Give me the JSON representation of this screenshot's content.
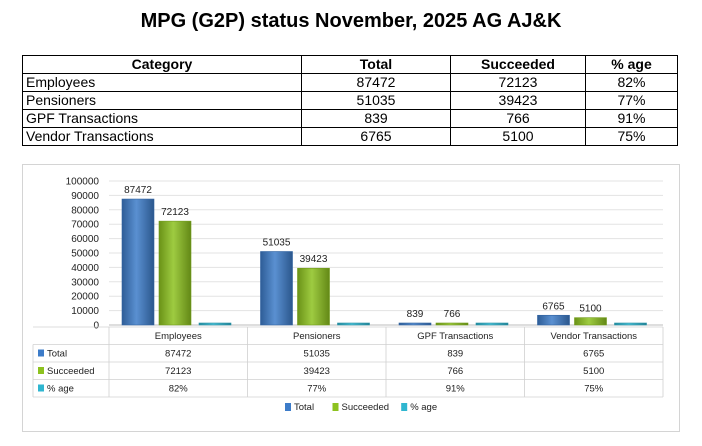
{
  "title": "MPG (G2P) status November, 2025 AG AJ&K",
  "table": {
    "headers": [
      "Category",
      "Total",
      "Succeeded",
      "% age"
    ],
    "rows": [
      [
        "Employees",
        "87472",
        "72123",
        "82%"
      ],
      [
        "Pensioners",
        "51035",
        "39423",
        "77%"
      ],
      [
        "GPF Transactions",
        "839",
        "766",
        "91%"
      ],
      [
        "Vendor Transactions",
        "6765",
        "5100",
        "75%"
      ]
    ]
  },
  "chart_data": {
    "type": "bar",
    "categories": [
      "Employees",
      "Pensioners",
      "GPF Transactions",
      "Vendor Transactions"
    ],
    "series": [
      {
        "name": "Total",
        "values": [
          87472,
          51035,
          839,
          6765
        ],
        "color": "#3d7cc9"
      },
      {
        "name": "Succeeded",
        "values": [
          72123,
          39423,
          766,
          5100
        ],
        "color": "#8dc21f"
      },
      {
        "name": "% age",
        "values": [
          0.82,
          0.77,
          0.91,
          0.75
        ],
        "color": "#2fb6d0"
      }
    ],
    "data_table": [
      [
        "87472",
        "51035",
        "839",
        "6765"
      ],
      [
        "72123",
        "39423",
        "766",
        "5100"
      ],
      [
        "82%",
        "77%",
        "91%",
        "75%"
      ]
    ],
    "ylim": [
      0,
      100000
    ],
    "yticks": [
      "100000",
      "90000",
      "80000",
      "70000",
      "60000",
      "50000",
      "40000",
      "30000",
      "20000",
      "10000",
      "0"
    ],
    "grid": true,
    "legend": "bottom"
  }
}
